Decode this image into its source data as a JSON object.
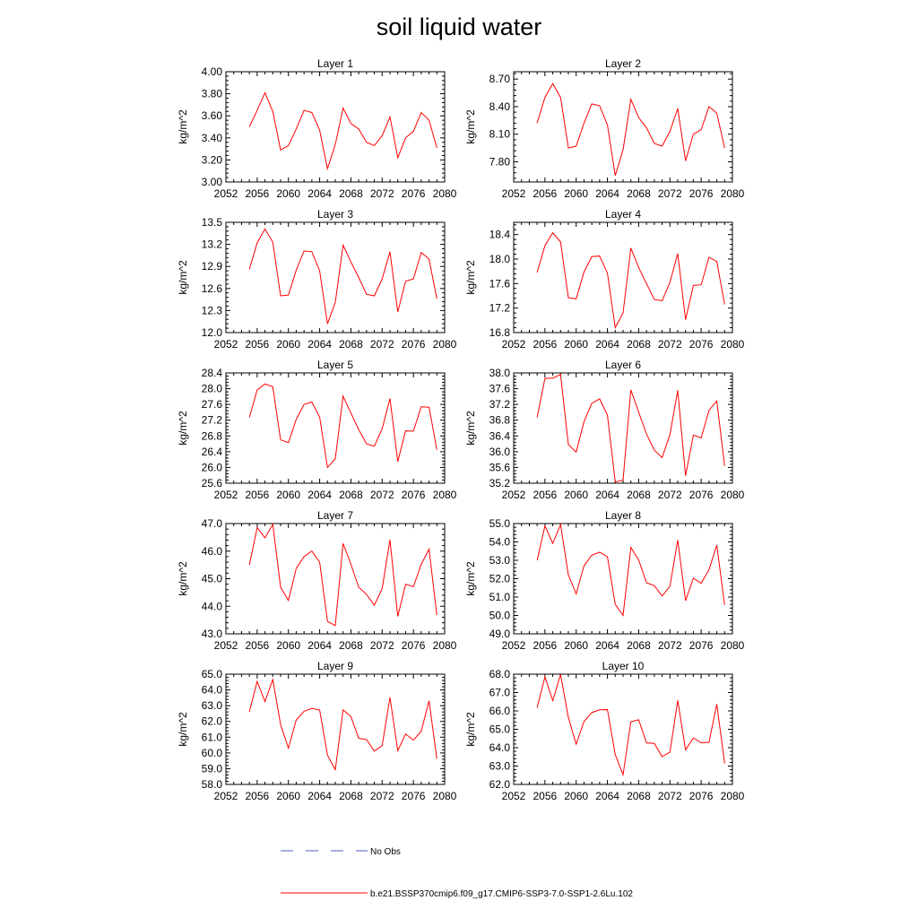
{
  "figure_title": "soil liquid water",
  "colors": {
    "model": "#ff0000",
    "obs": "#4a5fc1",
    "axis": "#000000"
  },
  "legend": {
    "obs_label": "No Obs",
    "model_label": "b.e21.BSSP370cmip6.f09_g17.CMIP6-SSP3-7.0-SSP1-2.6Lu.102"
  },
  "chart_data": [
    {
      "type": "line",
      "title": "Layer 1",
      "ylabel": "kg/m^2",
      "xlim": [
        2052,
        2080
      ],
      "xticks": [
        2052,
        2056,
        2060,
        2064,
        2068,
        2072,
        2076,
        2080
      ],
      "ylim": [
        3.0,
        4.0
      ],
      "yticks": [
        "3.00",
        "3.20",
        "3.40",
        "3.60",
        "3.80",
        "4.00"
      ],
      "x": [
        2055,
        2056,
        2057,
        2058,
        2059,
        2060,
        2061,
        2062,
        2063,
        2064,
        2065,
        2066,
        2067,
        2068,
        2069,
        2070,
        2071,
        2072,
        2073,
        2074,
        2075,
        2076,
        2077,
        2078,
        2079
      ],
      "series": [
        {
          "name": "b.e21.BSSP370cmip6.f09_g17.CMIP6-SSP3-7.0-SSP1-2.6Lu.102",
          "values": [
            3.5,
            3.65,
            3.81,
            3.64,
            3.29,
            3.33,
            3.48,
            3.65,
            3.63,
            3.47,
            3.12,
            3.34,
            3.67,
            3.53,
            3.48,
            3.36,
            3.33,
            3.42,
            3.59,
            3.22,
            3.4,
            3.46,
            3.63,
            3.56,
            3.31
          ]
        }
      ]
    },
    {
      "type": "line",
      "title": "Layer 2",
      "ylabel": "kg/m^2",
      "xlim": [
        2052,
        2080
      ],
      "xticks": [
        2052,
        2056,
        2060,
        2064,
        2068,
        2072,
        2076,
        2080
      ],
      "ylim": [
        7.58,
        8.78
      ],
      "yticks": [
        "7.80",
        "8.10",
        "8.40",
        "8.70"
      ],
      "x": [
        2055,
        2056,
        2057,
        2058,
        2059,
        2060,
        2061,
        2062,
        2063,
        2064,
        2065,
        2066,
        2067,
        2068,
        2069,
        2070,
        2071,
        2072,
        2073,
        2074,
        2075,
        2076,
        2077,
        2078,
        2079
      ],
      "series": [
        {
          "name": "b.e21.BSSP370cmip6.f09_g17.CMIP6-SSP3-7.0-SSP1-2.6Lu.102",
          "values": [
            8.22,
            8.5,
            8.65,
            8.5,
            7.95,
            7.97,
            8.22,
            8.43,
            8.41,
            8.2,
            7.65,
            7.93,
            8.48,
            8.28,
            8.17,
            8.0,
            7.97,
            8.13,
            8.38,
            7.81,
            8.1,
            8.15,
            8.4,
            8.33,
            7.95
          ]
        }
      ]
    },
    {
      "type": "line",
      "title": "Layer 3",
      "ylabel": "kg/m^2",
      "xlim": [
        2052,
        2080
      ],
      "xticks": [
        2052,
        2056,
        2060,
        2064,
        2068,
        2072,
        2076,
        2080
      ],
      "ylim": [
        12.0,
        13.5
      ],
      "yticks": [
        "12.0",
        "12.3",
        "12.6",
        "12.9",
        "13.2",
        "13.5"
      ],
      "x": [
        2055,
        2056,
        2057,
        2058,
        2059,
        2060,
        2061,
        2062,
        2063,
        2064,
        2065,
        2066,
        2067,
        2068,
        2069,
        2070,
        2071,
        2072,
        2073,
        2074,
        2075,
        2076,
        2077,
        2078,
        2079
      ],
      "series": [
        {
          "name": "b.e21.BSSP370cmip6.f09_g17.CMIP6-SSP3-7.0-SSP1-2.6Lu.102",
          "values": [
            12.86,
            13.22,
            13.41,
            13.23,
            12.5,
            12.51,
            12.85,
            13.11,
            13.1,
            12.84,
            12.12,
            12.41,
            13.19,
            12.96,
            12.75,
            12.52,
            12.5,
            12.73,
            13.1,
            12.28,
            12.7,
            12.73,
            13.09,
            13.0,
            12.46
          ]
        }
      ]
    },
    {
      "type": "line",
      "title": "Layer 4",
      "ylabel": "kg/m^2",
      "xlim": [
        2052,
        2080
      ],
      "xticks": [
        2052,
        2056,
        2060,
        2064,
        2068,
        2072,
        2076,
        2080
      ],
      "ylim": [
        16.8,
        18.6
      ],
      "yticks": [
        "16.8",
        "17.2",
        "17.6",
        "18.0",
        "18.4"
      ],
      "x": [
        2055,
        2056,
        2057,
        2058,
        2059,
        2060,
        2061,
        2062,
        2063,
        2064,
        2065,
        2066,
        2067,
        2068,
        2069,
        2070,
        2071,
        2072,
        2073,
        2074,
        2075,
        2076,
        2077,
        2078,
        2079
      ],
      "series": [
        {
          "name": "b.e21.BSSP370cmip6.f09_g17.CMIP6-SSP3-7.0-SSP1-2.6Lu.102",
          "values": [
            17.78,
            18.22,
            18.43,
            18.28,
            17.37,
            17.35,
            17.79,
            18.04,
            18.05,
            17.77,
            16.88,
            17.12,
            18.18,
            17.86,
            17.6,
            17.34,
            17.32,
            17.62,
            18.09,
            17.01,
            17.57,
            17.58,
            18.03,
            17.96,
            17.26
          ]
        }
      ]
    },
    {
      "type": "line",
      "title": "Layer 5",
      "ylabel": "kg/m^2",
      "xlim": [
        2052,
        2080
      ],
      "xticks": [
        2052,
        2056,
        2060,
        2064,
        2068,
        2072,
        2076,
        2080
      ],
      "ylim": [
        25.6,
        28.4
      ],
      "yticks": [
        "25.6",
        "26.0",
        "26.4",
        "26.8",
        "27.2",
        "27.6",
        "28.0",
        "28.4"
      ],
      "x": [
        2055,
        2056,
        2057,
        2058,
        2059,
        2060,
        2061,
        2062,
        2063,
        2064,
        2065,
        2066,
        2067,
        2068,
        2069,
        2070,
        2071,
        2072,
        2073,
        2074,
        2075,
        2076,
        2077,
        2078,
        2079
      ],
      "series": [
        {
          "name": "b.e21.BSSP370cmip6.f09_g17.CMIP6-SSP3-7.0-SSP1-2.6Lu.102",
          "values": [
            27.27,
            27.97,
            28.12,
            28.05,
            26.7,
            26.63,
            27.22,
            27.6,
            27.66,
            27.28,
            26.0,
            26.22,
            27.81,
            27.38,
            26.96,
            26.6,
            26.54,
            26.98,
            27.75,
            26.15,
            26.93,
            26.92,
            27.54,
            27.53,
            26.45
          ]
        }
      ]
    },
    {
      "type": "line",
      "title": "Layer 6",
      "ylabel": "kg/m^2",
      "xlim": [
        2052,
        2080
      ],
      "xticks": [
        2052,
        2056,
        2060,
        2064,
        2068,
        2072,
        2076,
        2080
      ],
      "ylim": [
        35.2,
        38.0
      ],
      "yticks": [
        "35.2",
        "35.6",
        "36.0",
        "36.4",
        "36.8",
        "37.2",
        "37.6",
        "38.0"
      ],
      "x": [
        2055,
        2056,
        2057,
        2058,
        2059,
        2060,
        2061,
        2062,
        2063,
        2064,
        2065,
        2066,
        2067,
        2068,
        2069,
        2070,
        2071,
        2072,
        2073,
        2074,
        2075,
        2076,
        2077,
        2078,
        2079
      ],
      "series": [
        {
          "name": "b.e21.BSSP370cmip6.f09_g17.CMIP6-SSP3-7.0-SSP1-2.6Lu.102",
          "values": [
            36.87,
            37.86,
            37.87,
            37.96,
            36.18,
            35.99,
            36.76,
            37.23,
            37.34,
            36.93,
            35.23,
            35.28,
            37.57,
            37.0,
            36.45,
            36.04,
            35.85,
            36.43,
            37.56,
            35.39,
            36.42,
            36.35,
            37.05,
            37.29,
            35.64
          ]
        }
      ]
    },
    {
      "type": "line",
      "title": "Layer 7",
      "ylabel": "kg/m^2",
      "xlim": [
        2052,
        2080
      ],
      "xticks": [
        2052,
        2056,
        2060,
        2064,
        2068,
        2072,
        2076,
        2080
      ],
      "ylim": [
        43.0,
        47.0
      ],
      "yticks": [
        "43.0",
        "44.0",
        "45.0",
        "46.0",
        "47.0"
      ],
      "x": [
        2055,
        2056,
        2057,
        2058,
        2059,
        2060,
        2061,
        2062,
        2063,
        2064,
        2065,
        2066,
        2067,
        2068,
        2069,
        2070,
        2071,
        2072,
        2073,
        2074,
        2075,
        2076,
        2077,
        2078,
        2079
      ],
      "series": [
        {
          "name": "b.e21.BSSP370cmip6.f09_g17.CMIP6-SSP3-7.0-SSP1-2.6Lu.102",
          "values": [
            45.5,
            46.85,
            46.48,
            46.97,
            44.69,
            44.21,
            45.37,
            45.8,
            46.0,
            45.6,
            43.45,
            43.3,
            46.28,
            45.52,
            44.69,
            44.43,
            44.04,
            44.64,
            46.41,
            43.63,
            44.8,
            44.71,
            45.52,
            46.07,
            43.68
          ]
        }
      ]
    },
    {
      "type": "line",
      "title": "Layer 8",
      "ylabel": "kg/m^2",
      "xlim": [
        2052,
        2080
      ],
      "xticks": [
        2052,
        2056,
        2060,
        2064,
        2068,
        2072,
        2076,
        2080
      ],
      "ylim": [
        49.0,
        55.0
      ],
      "yticks": [
        "49.0",
        "50.0",
        "51.0",
        "52.0",
        "53.0",
        "54.0",
        "55.0"
      ],
      "x": [
        2055,
        2056,
        2057,
        2058,
        2059,
        2060,
        2061,
        2062,
        2063,
        2064,
        2065,
        2066,
        2067,
        2068,
        2069,
        2070,
        2071,
        2072,
        2073,
        2074,
        2075,
        2076,
        2077,
        2078,
        2079
      ],
      "series": [
        {
          "name": "b.e21.BSSP370cmip6.f09_g17.CMIP6-SSP3-7.0-SSP1-2.6Lu.102",
          "values": [
            53.0,
            54.87,
            53.92,
            54.94,
            52.2,
            51.17,
            52.7,
            53.28,
            53.44,
            53.2,
            50.6,
            50.0,
            53.7,
            53.02,
            51.78,
            51.62,
            51.06,
            51.59,
            54.1,
            50.8,
            52.03,
            51.75,
            52.49,
            53.83,
            50.57
          ]
        }
      ]
    },
    {
      "type": "line",
      "title": "Layer 9",
      "ylabel": "kg/m^2",
      "xlim": [
        2052,
        2080
      ],
      "xticks": [
        2052,
        2056,
        2060,
        2064,
        2068,
        2072,
        2076,
        2080
      ],
      "ylim": [
        58.0,
        65.0
      ],
      "yticks": [
        "58.0",
        "59.0",
        "60.0",
        "61.0",
        "62.0",
        "63.0",
        "64.0",
        "65.0"
      ],
      "x": [
        2055,
        2056,
        2057,
        2058,
        2059,
        2060,
        2061,
        2062,
        2063,
        2064,
        2065,
        2066,
        2067,
        2068,
        2069,
        2070,
        2071,
        2072,
        2073,
        2074,
        2075,
        2076,
        2077,
        2078,
        2079
      ],
      "series": [
        {
          "name": "b.e21.BSSP370cmip6.f09_g17.CMIP6-SSP3-7.0-SSP1-2.6Lu.102",
          "values": [
            62.62,
            64.54,
            63.26,
            64.66,
            61.8,
            60.3,
            62.09,
            62.64,
            62.83,
            62.72,
            59.85,
            58.93,
            62.73,
            62.31,
            60.93,
            60.85,
            60.12,
            60.46,
            63.53,
            60.14,
            61.2,
            60.81,
            61.38,
            63.31,
            59.63
          ]
        }
      ]
    },
    {
      "type": "line",
      "title": "Layer 10",
      "ylabel": "kg/m^2",
      "xlim": [
        2052,
        2080
      ],
      "xticks": [
        2052,
        2056,
        2060,
        2064,
        2068,
        2072,
        2076,
        2080
      ],
      "ylim": [
        62.0,
        68.0
      ],
      "yticks": [
        "62.0",
        "63.0",
        "64.0",
        "65.0",
        "66.0",
        "67.0",
        "68.0"
      ],
      "x": [
        2055,
        2056,
        2057,
        2058,
        2059,
        2060,
        2061,
        2062,
        2063,
        2064,
        2065,
        2066,
        2067,
        2068,
        2069,
        2070,
        2071,
        2072,
        2073,
        2074,
        2075,
        2076,
        2077,
        2078,
        2079
      ],
      "series": [
        {
          "name": "b.e21.BSSP370cmip6.f09_g17.CMIP6-SSP3-7.0-SSP1-2.6Lu.102",
          "values": [
            66.17,
            67.85,
            66.56,
            67.98,
            65.64,
            64.19,
            65.42,
            65.91,
            66.06,
            66.07,
            63.62,
            62.52,
            65.41,
            65.52,
            64.26,
            64.23,
            63.51,
            63.76,
            66.57,
            63.88,
            64.53,
            64.26,
            64.29,
            66.37,
            63.15
          ]
        }
      ]
    }
  ]
}
